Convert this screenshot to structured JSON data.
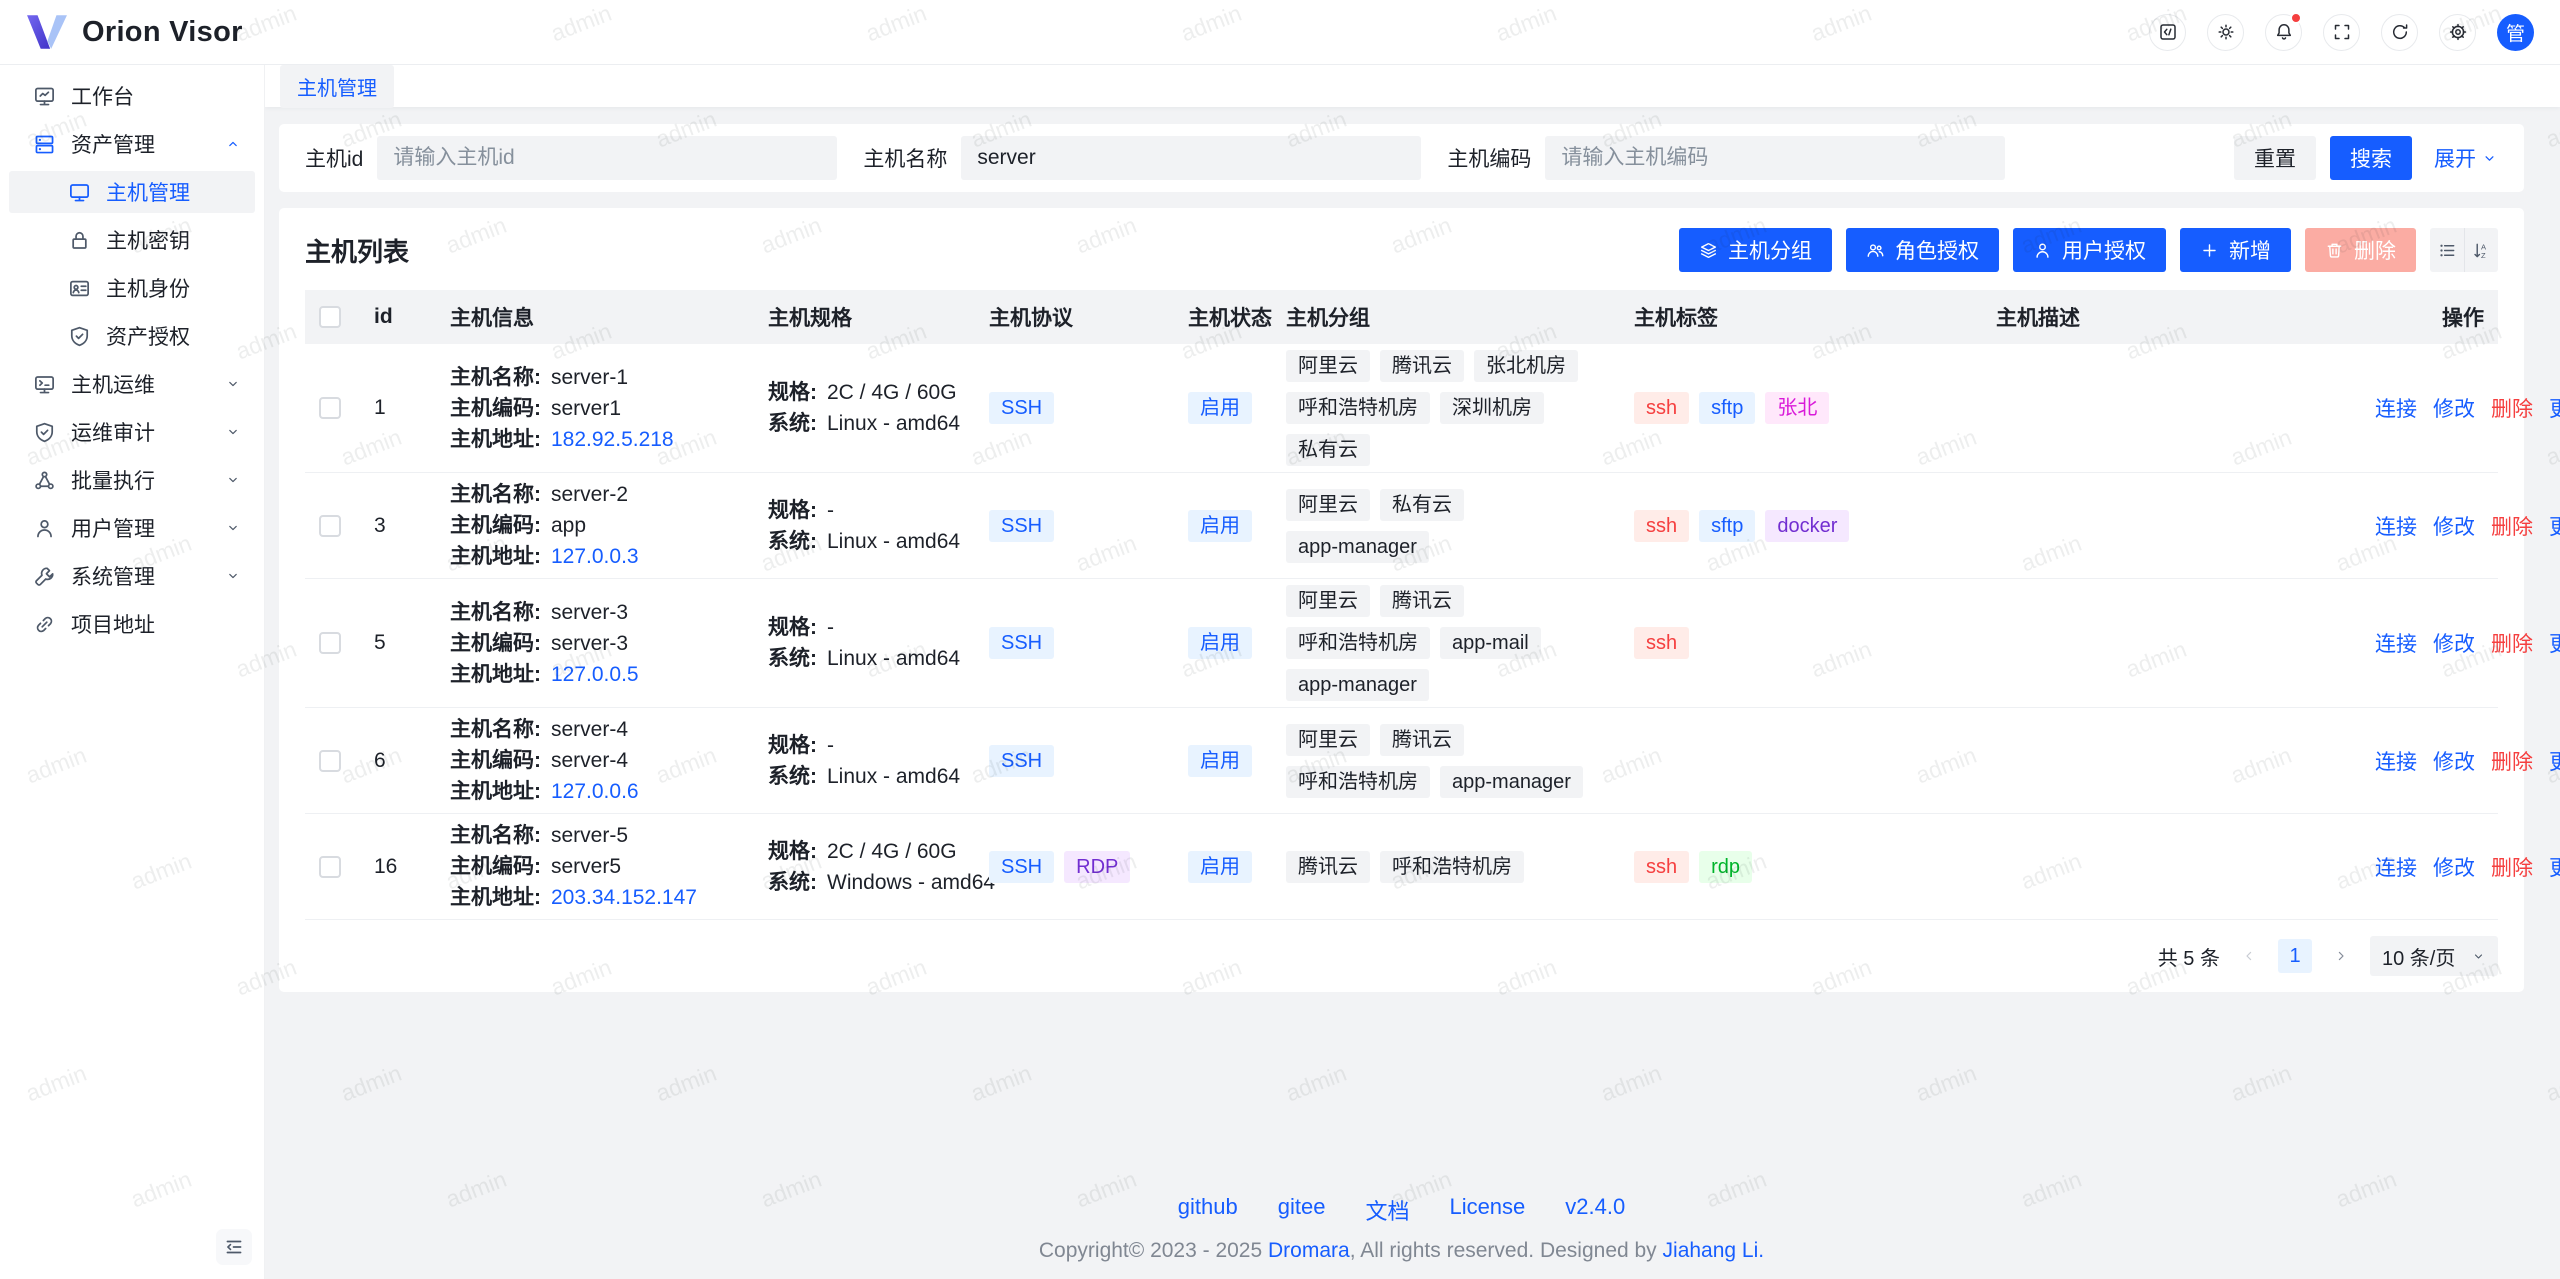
{
  "app": {
    "title": "Orion Visor",
    "avatar": "管"
  },
  "header": {
    "icons": [
      {
        "key": "code",
        "icon": "code-icon"
      },
      {
        "key": "theme",
        "icon": "sun-icon"
      },
      {
        "key": "notifications",
        "icon": "bell-icon",
        "badge": true
      },
      {
        "key": "fullscreen",
        "icon": "fullscreen-icon"
      },
      {
        "key": "refresh",
        "icon": "refresh-icon"
      },
      {
        "key": "settings",
        "icon": "gear-icon"
      }
    ]
  },
  "sidebar": {
    "items": [
      {
        "key": "workbench",
        "label": "工作台",
        "icon": "workbench-icon"
      },
      {
        "key": "asset-manage",
        "label": "资产管理",
        "icon": "asset-icon",
        "chevron": "up",
        "children": [
          {
            "key": "host-manage",
            "label": "主机管理",
            "icon": "host-icon",
            "active": true
          },
          {
            "key": "host-key",
            "label": "主机密钥",
            "icon": "key-icon"
          },
          {
            "key": "host-identity",
            "label": "主机身份",
            "icon": "identity-icon"
          },
          {
            "key": "asset-grant",
            "label": "资产授权",
            "icon": "shield-icon"
          }
        ]
      },
      {
        "key": "host-ops",
        "label": "主机运维",
        "icon": "ops-icon",
        "chevron": "down"
      },
      {
        "key": "ops-audit",
        "label": "运维审计",
        "icon": "shield-icon",
        "chevron": "down"
      },
      {
        "key": "batch-exec",
        "label": "批量执行",
        "icon": "cluster-icon",
        "chevron": "down"
      },
      {
        "key": "user-manage",
        "label": "用户管理",
        "icon": "user-icon",
        "chevron": "down"
      },
      {
        "key": "system-manage",
        "label": "系统管理",
        "icon": "wrench-icon",
        "chevron": "down"
      },
      {
        "key": "project-link",
        "label": "项目地址",
        "icon": "link-icon"
      }
    ]
  },
  "tabs": [
    {
      "key": "host-manage",
      "label": "主机管理",
      "active": true
    }
  ],
  "filter": {
    "fields": [
      {
        "key": "host-id",
        "label": "主机id",
        "placeholder": "请输入主机id",
        "value": ""
      },
      {
        "key": "host-name",
        "label": "主机名称",
        "placeholder": "",
        "value": "server"
      },
      {
        "key": "host-code",
        "label": "主机编码",
        "placeholder": "请输入主机编码",
        "value": ""
      }
    ],
    "reset": "重置",
    "search": "搜索",
    "expand": "展开"
  },
  "list": {
    "title": "主机列表",
    "toolbar": [
      {
        "key": "host-group",
        "label": "主机分组",
        "icon": "layers-icon",
        "style": "primary"
      },
      {
        "key": "role-grant",
        "label": "角色授权",
        "icon": "user-group-icon",
        "style": "primary"
      },
      {
        "key": "user-grant",
        "label": "用户授权",
        "icon": "user-icon",
        "style": "primary"
      },
      {
        "key": "add",
        "label": "新增",
        "icon": "plus-icon",
        "style": "primary"
      },
      {
        "key": "delete",
        "label": "删除",
        "icon": "trash-icon",
        "style": "danger",
        "disabled": true
      }
    ],
    "columns": [
      "id",
      "主机信息",
      "主机规格",
      "主机协议",
      "主机状态",
      "主机分组",
      "主机标签",
      "主机描述",
      "操作"
    ],
    "labels": {
      "name": "主机名称:",
      "code": "主机编码:",
      "address": "主机地址:",
      "spec": "规格:",
      "system": "系统:"
    },
    "actions": [
      {
        "key": "connect",
        "label": "连接",
        "color": "blue"
      },
      {
        "key": "edit",
        "label": "修改",
        "color": "blue"
      },
      {
        "key": "delete",
        "label": "删除",
        "color": "red"
      },
      {
        "key": "more",
        "label": "更多",
        "color": "blue"
      }
    ],
    "rows": [
      {
        "id": "1",
        "name": "server-1",
        "code": "server1",
        "address": "182.92.5.218",
        "spec": "2C / 4G / 60G",
        "system": "Linux - amd64",
        "protocols": [
          {
            "text": "SSH",
            "color": "blue"
          }
        ],
        "status": {
          "text": "启用",
          "color": "blue"
        },
        "groups": [
          "阿里云",
          "腾讯云",
          "张北机房",
          "呼和浩特机房",
          "深圳机房",
          "私有云"
        ],
        "tags": [
          {
            "text": "ssh",
            "color": "red"
          },
          {
            "text": "sftp",
            "color": "blue"
          },
          {
            "text": "张北",
            "color": "magenta"
          }
        ],
        "description": ""
      },
      {
        "id": "3",
        "name": "server-2",
        "code": "app",
        "address": "127.0.0.3",
        "spec": "-",
        "system": "Linux - amd64",
        "protocols": [
          {
            "text": "SSH",
            "color": "blue"
          }
        ],
        "status": {
          "text": "启用",
          "color": "blue"
        },
        "groups": [
          "阿里云",
          "私有云",
          "app-manager"
        ],
        "tags": [
          {
            "text": "ssh",
            "color": "red"
          },
          {
            "text": "sftp",
            "color": "blue"
          },
          {
            "text": "docker",
            "color": "purple"
          }
        ],
        "description": ""
      },
      {
        "id": "5",
        "name": "server-3",
        "code": "server-3",
        "address": "127.0.0.5",
        "spec": "-",
        "system": "Linux - amd64",
        "protocols": [
          {
            "text": "SSH",
            "color": "blue"
          }
        ],
        "status": {
          "text": "启用",
          "color": "blue"
        },
        "groups": [
          "阿里云",
          "腾讯云",
          "呼和浩特机房",
          "app-mail",
          "app-manager"
        ],
        "tags": [
          {
            "text": "ssh",
            "color": "red"
          }
        ],
        "description": ""
      },
      {
        "id": "6",
        "name": "server-4",
        "code": "server-4",
        "address": "127.0.0.6",
        "spec": "-",
        "system": "Linux - amd64",
        "protocols": [
          {
            "text": "SSH",
            "color": "blue"
          }
        ],
        "status": {
          "text": "启用",
          "color": "blue"
        },
        "groups": [
          "阿里云",
          "腾讯云",
          "呼和浩特机房",
          "app-manager"
        ],
        "tags": [],
        "description": ""
      },
      {
        "id": "16",
        "name": "server-5",
        "code": "server5",
        "address": "203.34.152.147",
        "spec": "2C / 4G / 60G",
        "system": "Windows - amd64",
        "protocols": [
          {
            "text": "SSH",
            "color": "blue"
          },
          {
            "text": "RDP",
            "color": "purple"
          }
        ],
        "status": {
          "text": "启用",
          "color": "blue"
        },
        "groups": [
          "腾讯云",
          "呼和浩特机房"
        ],
        "tags": [
          {
            "text": "ssh",
            "color": "red"
          },
          {
            "text": "rdp",
            "color": "green"
          }
        ],
        "description": ""
      }
    ],
    "pagination": {
      "total": "共 5 条",
      "current_page": "1",
      "page_size": "10 条/页"
    }
  },
  "footer": {
    "links": [
      {
        "key": "github",
        "label": "github"
      },
      {
        "key": "gitee",
        "label": "gitee"
      },
      {
        "key": "docs",
        "label": "文档"
      },
      {
        "key": "license",
        "label": "License"
      },
      {
        "key": "version",
        "label": "v2.4.0"
      }
    ],
    "copyright": [
      {
        "text": "Copyright© 2023 - 2025 "
      },
      {
        "text": "Dromara",
        "link": true
      },
      {
        "text": ", All rights reserved. Designed by "
      },
      {
        "text": "Jiahang Li.",
        "link": true
      }
    ]
  },
  "watermark": "admin",
  "colors": {
    "primary": "#165dff",
    "danger": "#f53f3f",
    "danger_disabled_bg": "#fbaca3",
    "text": "#1d2129",
    "text_secondary": "#4e5969",
    "placeholder": "#86909c",
    "bg": "#f2f3f5",
    "border": "#e5e6eb",
    "tag": {
      "blue": {
        "bg": "#e8f3ff",
        "fg": "#165dff"
      },
      "red": {
        "bg": "#ffece8",
        "fg": "#f53f3f"
      },
      "magenta": {
        "bg": "#ffe8fb",
        "fg": "#d91ad9"
      },
      "purple": {
        "bg": "#f5e8ff",
        "fg": "#722ed1"
      },
      "green": {
        "bg": "#e8ffea",
        "fg": "#00b42a"
      },
      "gray": {
        "bg": "#f2f3f5",
        "fg": "#1d2129"
      }
    }
  }
}
